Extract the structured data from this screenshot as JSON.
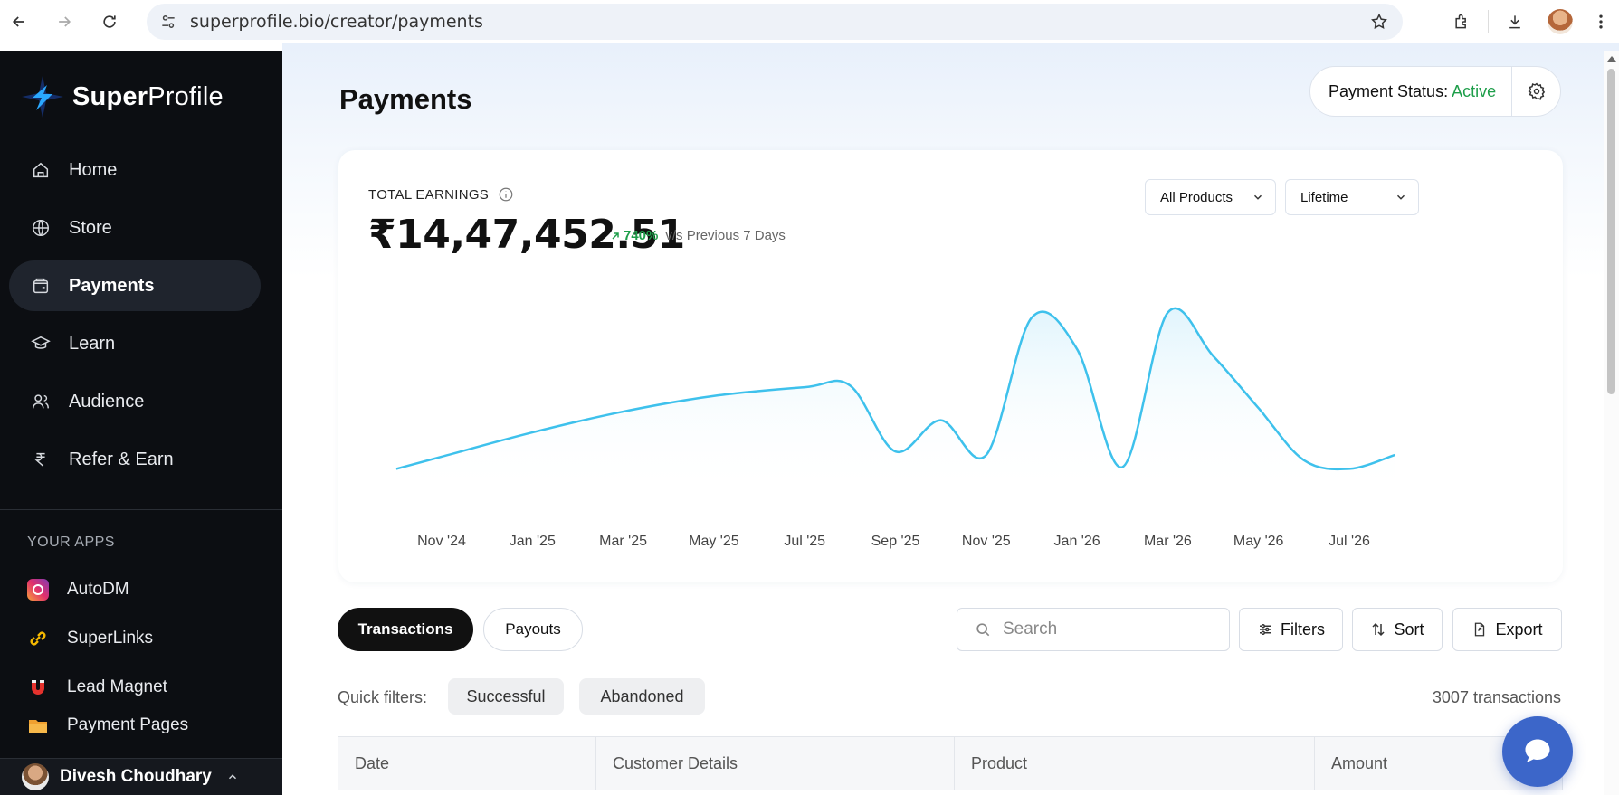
{
  "browser": {
    "url": "superprofile.bio/creator/payments",
    "icons": [
      "back-icon",
      "forward-icon",
      "reload-icon",
      "site-settings-icon",
      "bookmark-star-icon",
      "extensions-icon",
      "downloads-icon",
      "profile-avatar",
      "more-icon"
    ]
  },
  "sidebar": {
    "brand_bold": "Super",
    "brand_light": "Profile",
    "items": [
      {
        "label": "Home",
        "icon": "home-icon",
        "active": false
      },
      {
        "label": "Store",
        "icon": "globe-icon",
        "active": false
      },
      {
        "label": "Payments",
        "icon": "wallet-icon",
        "active": true
      },
      {
        "label": "Learn",
        "icon": "graduation-cap-icon",
        "active": false
      },
      {
        "label": "Audience",
        "icon": "users-icon",
        "active": false
      },
      {
        "label": "Refer & Earn",
        "icon": "rupee-icon",
        "active": false
      }
    ],
    "apps_title": "YOUR APPS",
    "apps": [
      {
        "label": "AutoDM",
        "icon": "instagram-icon"
      },
      {
        "label": "SuperLinks",
        "icon": "link-icon"
      },
      {
        "label": "Lead Magnet",
        "icon": "magnet-icon"
      },
      {
        "label": "Payment Pages",
        "icon": "folder-icon"
      }
    ],
    "user": {
      "name": "Divesh Choudhary"
    }
  },
  "header": {
    "title": "Payments",
    "status_label": "Payment Status:",
    "status_value": "Active"
  },
  "earnings": {
    "label": "TOTAL EARNINGS",
    "value": "₹14,47,452.51",
    "change_pct": "740%",
    "change_text": "v/s Previous 7 Days",
    "product_filter": "All Products",
    "period_filter": "Lifetime"
  },
  "chart_data": {
    "type": "area",
    "x_ticks": [
      "Nov '24",
      "Jan '25",
      "Mar '25",
      "May '25",
      "Jul '25",
      "Sep '25",
      "Nov '25",
      "Jan '26",
      "Mar '26",
      "May '26",
      "Jul '26"
    ],
    "series": [
      {
        "x": [
          "Oct '24",
          "Nov '24",
          "Jan '25",
          "Mar '25",
          "May '25",
          "Jul '25",
          "Aug '25",
          "Sep '25",
          "Oct '25",
          "Nov '25",
          "Dec '25",
          "Jan '26",
          "Feb '26",
          "Mar '26",
          "Apr '26",
          "May '26",
          "Jun '26",
          "Jul '26",
          "Aug '26"
        ],
        "values": [
          0.05,
          0.12,
          0.26,
          0.38,
          0.47,
          0.52,
          0.53,
          0.15,
          0.33,
          0.13,
          0.92,
          0.74,
          0.06,
          0.95,
          0.7,
          0.4,
          0.1,
          0.05,
          0.13
        ]
      }
    ],
    "color": "#3ec1ec",
    "grid": false,
    "legend": "none"
  },
  "tabs": [
    {
      "label": "Transactions",
      "active": true
    },
    {
      "label": "Payouts",
      "active": false
    }
  ],
  "toolbar": {
    "search_placeholder": "Search",
    "filters_label": "Filters",
    "sort_label": "Sort",
    "export_label": "Export"
  },
  "quick_filters": {
    "label": "Quick filters:",
    "chips": [
      "Successful",
      "Abandoned"
    ],
    "count": "3007 transactions"
  },
  "table": {
    "columns": [
      "Date",
      "Customer Details",
      "Product",
      "Amount"
    ]
  },
  "colors": {
    "accent_green": "#1e9e4a",
    "chart_line": "#3ec1ec",
    "sidebar_bg": "#0c0e12",
    "chat_button": "#3c66c9"
  }
}
